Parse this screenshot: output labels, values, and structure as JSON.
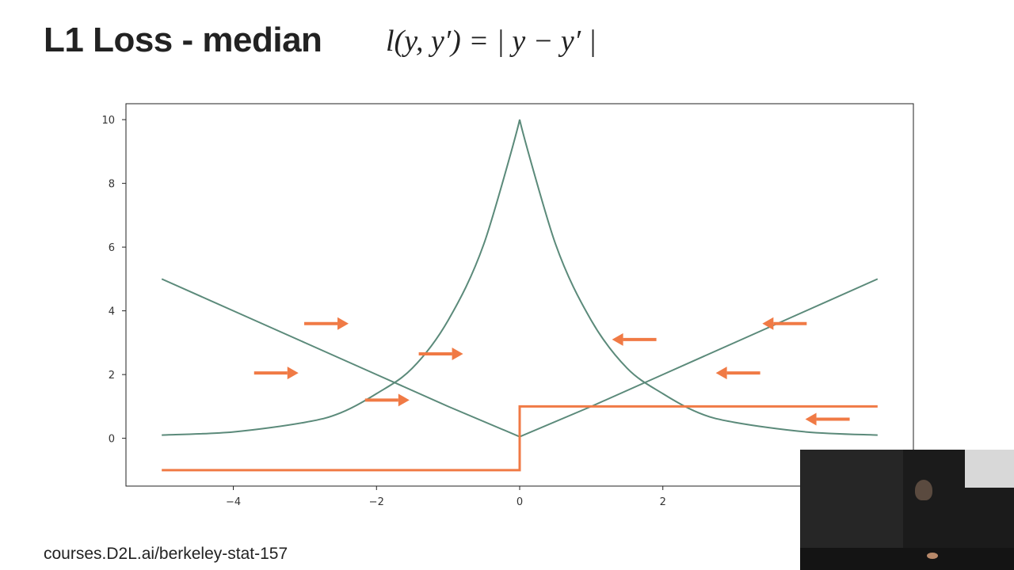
{
  "slide": {
    "title": "L1 Loss - median",
    "formula": "l(y, y′) = | y − y′ |",
    "footer_url": "courses.D2L.ai/berkeley-stat-157"
  },
  "colors": {
    "loss_line": "#5b8a7a",
    "likelihood_line": "#5b8a7a",
    "gradient_line": "#f07a45",
    "arrow": "#f07a45",
    "axes": "#222222"
  },
  "chart_data": {
    "type": "line",
    "title": "",
    "xlabel": "",
    "ylabel": "",
    "xlim": [
      -5.5,
      5.5
    ],
    "ylim": [
      -1.5,
      10.5
    ],
    "xticks": [
      -4,
      -2,
      0,
      2
    ],
    "xtick_labels": [
      "−4",
      "−2",
      "0",
      "2"
    ],
    "yticks": [
      0,
      2,
      4,
      6,
      8,
      10
    ],
    "ytick_labels": [
      "0",
      "2",
      "4",
      "6",
      "8",
      "10"
    ],
    "grid": false,
    "series": [
      {
        "kind": "loss",
        "x": [
          -5,
          -4,
          -3,
          -2,
          -1,
          0,
          1,
          2,
          3,
          4,
          5
        ],
        "y": [
          5,
          4,
          3,
          2,
          1,
          0.05,
          1,
          2,
          3,
          4,
          5
        ]
      },
      {
        "kind": "likelihood",
        "x": [
          -5,
          -4,
          -3,
          -2.5,
          -2,
          -1.5,
          -1,
          -0.5,
          0,
          0.5,
          1,
          1.5,
          2,
          2.5,
          3,
          4,
          5
        ],
        "y": [
          0.1,
          0.2,
          0.5,
          0.8,
          1.4,
          2.2,
          3.7,
          6.1,
          10,
          6.1,
          3.7,
          2.2,
          1.4,
          0.8,
          0.5,
          0.2,
          0.1
        ]
      },
      {
        "kind": "gradient",
        "x": [
          -5,
          0,
          0,
          5
        ],
        "y": [
          -1,
          -1,
          1,
          1
        ]
      }
    ],
    "arrows": [
      {
        "x": -2.7,
        "y": 3.6,
        "direction": "right"
      },
      {
        "x": -3.4,
        "y": 2.05,
        "direction": "right"
      },
      {
        "x": -1.1,
        "y": 2.65,
        "direction": "right"
      },
      {
        "x": -1.85,
        "y": 1.2,
        "direction": "right"
      },
      {
        "x": 1.6,
        "y": 3.1,
        "direction": "left"
      },
      {
        "x": 3.7,
        "y": 3.6,
        "direction": "left"
      },
      {
        "x": 3.05,
        "y": 2.05,
        "direction": "left"
      },
      {
        "x": 4.3,
        "y": 0.6,
        "direction": "left"
      }
    ]
  }
}
